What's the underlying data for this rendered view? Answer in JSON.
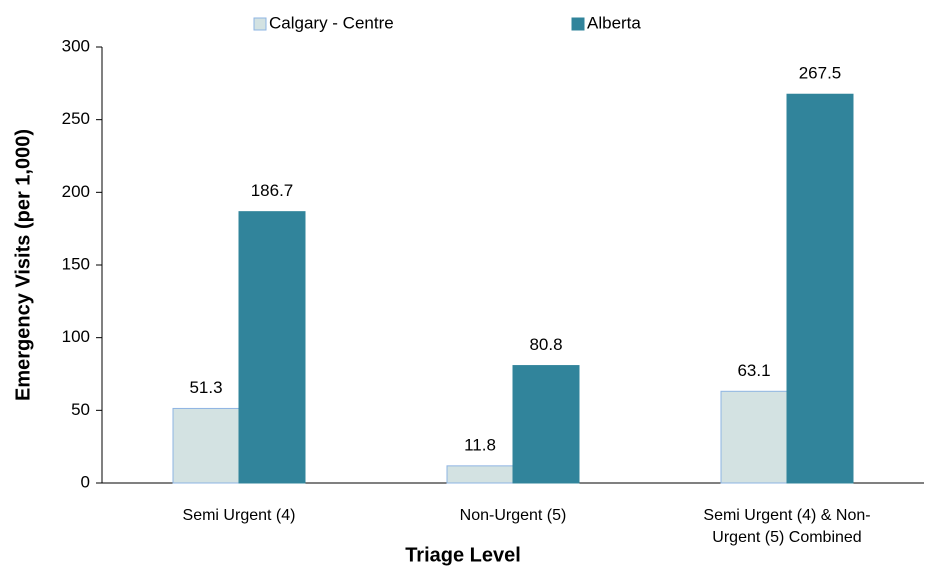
{
  "chart_data": {
    "type": "bar",
    "x_label": "Triage Level",
    "y_label": "Emergency Visits (per 1,000)",
    "categories": [
      "Semi Urgent (4)",
      "Non-Urgent (5)",
      "Semi Urgent (4) & Non-Urgent (5) Combined"
    ],
    "series": [
      {
        "name": "Calgary - Centre",
        "color": "#d3e2e2",
        "values": [
          51.3,
          11.8,
          63.1
        ]
      },
      {
        "name": "Alberta",
        "color": "#31849b",
        "values": [
          186.7,
          80.8,
          267.5
        ]
      }
    ],
    "ylim": [
      0,
      300
    ],
    "yticks": [
      0,
      50,
      100,
      150,
      200,
      250,
      300
    ],
    "grid": false,
    "legend": "top"
  }
}
